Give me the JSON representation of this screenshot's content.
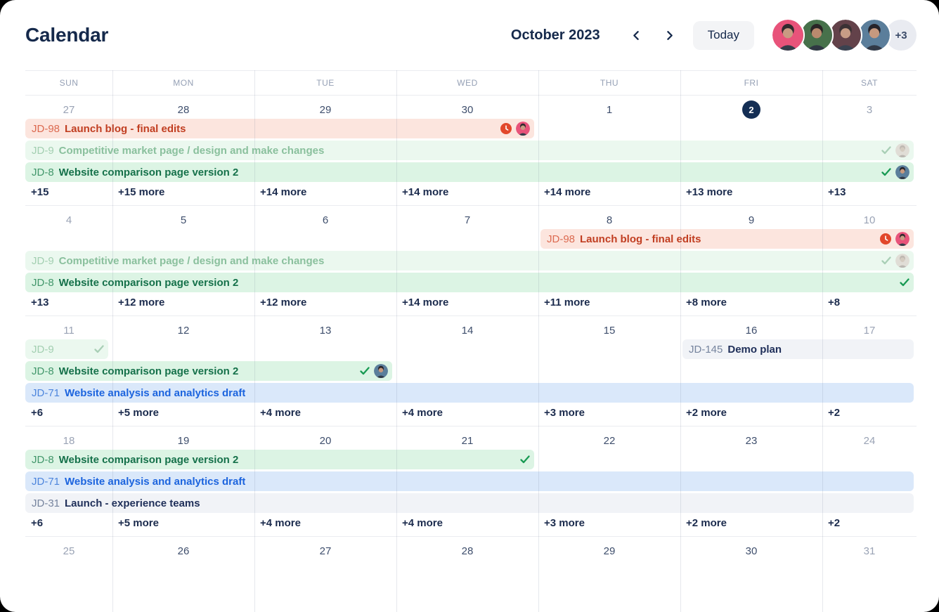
{
  "header": {
    "title": "Calendar",
    "month_label": "October 2023",
    "today_label": "Today",
    "avatars": [
      "avatar-icon-pink",
      "avatar-icon-green",
      "avatar-icon-maroon",
      "avatar-icon-slate"
    ],
    "overflow_badge": "+3"
  },
  "day_headers": [
    "SUN",
    "MON",
    "TUE",
    "WED",
    "THU",
    "FRI",
    "SAT"
  ],
  "colors": {
    "ink": "#15294B",
    "grid_line": "#EBECF0",
    "today_bg": "#142E54",
    "more_text": "#1B2B4D",
    "weekday_num": "#3E4E6C",
    "weekend_num": "#9AA3B5"
  },
  "palette": {
    "red": {
      "bg": "#FCE5DE",
      "key": "#DC6A50",
      "title": "#C13E21"
    },
    "greenFaded": {
      "bg": "#EBF8EF",
      "key": "#A3CFB1",
      "title": "#8AC09D"
    },
    "green": {
      "bg": "#DCF4E4",
      "key": "#42976B",
      "title": "#15714A"
    },
    "blue": {
      "bg": "#DAE8FA",
      "key": "#4E86DD",
      "title": "#1C64DE"
    },
    "gray": {
      "bg": "#F1F3F7",
      "key": "#76849E",
      "title": "#20305A"
    }
  },
  "avatar_defs": {
    "avatar-icon-pink": {
      "bg": "#E8537A",
      "hair": "#312A2E",
      "skin": "#C99B82",
      "shirt": "#343C49",
      "faded": false
    },
    "avatar-icon-green": {
      "bg": "#47714B",
      "hair": "#2A2526",
      "skin": "#B98A6E",
      "shirt": "#2F3742",
      "faded": false
    },
    "avatar-icon-maroon": {
      "bg": "#63424A",
      "hair": "#3A3134",
      "skin": "#C79C86",
      "shirt": "#3A4250",
      "faded": false
    },
    "avatar-icon-slate": {
      "bg": "#5B7E9B",
      "hair": "#26242B",
      "skin": "#C6997F",
      "shirt": "#313947",
      "faded": false
    },
    "avatar-icon-faded": {
      "bg": "#DFD9D2",
      "hair": "#B8AEA7",
      "skin": "#CFC3B8",
      "shirt": "#B2ACA6",
      "faded": true
    }
  },
  "check_colors": {
    "check-icon": "#189A53",
    "check-icon-faded": "#A9CFB6"
  },
  "clock_color": "#E2472B",
  "weeks": [
    {
      "days": [
        {
          "label": "27",
          "muted": true
        },
        {
          "label": "28"
        },
        {
          "label": "29"
        },
        {
          "label": "30"
        },
        {
          "label": "1"
        },
        {
          "label": "2",
          "today": true
        },
        {
          "label": "3",
          "muted": true
        }
      ],
      "events": [
        {
          "key": "JD-98",
          "title": "Launch blog - final edits",
          "style": "red",
          "col_start": 0,
          "col_end": 3,
          "slot": 0,
          "icons": [
            "clock-icon",
            "avatar-icon-pink"
          ]
        },
        {
          "key": "JD-9",
          "title": "Competitive market page / design and make changes",
          "style": "greenFaded",
          "col_start": 0,
          "col_end": 6,
          "slot": 1,
          "icons": [
            "check-icon-faded",
            "avatar-icon-faded"
          ]
        },
        {
          "key": "JD-8",
          "title": "Website comparison page version 2",
          "style": "green",
          "col_start": 0,
          "col_end": 6,
          "slot": 2,
          "icons": [
            "check-icon",
            "avatar-icon-slate"
          ]
        }
      ],
      "more": [
        "+15",
        "+15 more",
        "+14 more",
        "+14 more",
        "+14 more",
        "+13 more",
        "+13"
      ]
    },
    {
      "days": [
        {
          "label": "4",
          "muted": true
        },
        {
          "label": "5"
        },
        {
          "label": "6"
        },
        {
          "label": "7"
        },
        {
          "label": "8"
        },
        {
          "label": "9"
        },
        {
          "label": "10",
          "muted": true
        }
      ],
      "events": [
        {
          "key": "JD-98",
          "title": "Launch blog - final edits",
          "style": "red",
          "col_start": 4,
          "col_end": 6,
          "slot": 0,
          "icons": [
            "clock-icon",
            "avatar-icon-pink"
          ]
        },
        {
          "key": "JD-9",
          "title": "Competitive market page / design and make changes",
          "style": "greenFaded",
          "col_start": 0,
          "col_end": 6,
          "slot": 1,
          "icons": [
            "check-icon-faded",
            "avatar-icon-faded"
          ]
        },
        {
          "key": "JD-8",
          "title": "Website comparison page version 2",
          "style": "green",
          "col_start": 0,
          "col_end": 6,
          "slot": 2,
          "icons": [
            "check-icon"
          ]
        }
      ],
      "more": [
        "+13",
        "+12 more",
        "+12 more",
        "+14 more",
        "+11 more",
        "+8 more",
        "+8"
      ]
    },
    {
      "days": [
        {
          "label": "11",
          "muted": true
        },
        {
          "label": "12"
        },
        {
          "label": "13"
        },
        {
          "label": "14"
        },
        {
          "label": "15"
        },
        {
          "label": "16"
        },
        {
          "label": "17",
          "muted": true
        }
      ],
      "events": [
        {
          "key": "JD-9",
          "title": "",
          "style": "greenFaded",
          "col_start": 0,
          "col_end": 0,
          "slot": 0,
          "icons": [
            "check-icon-faded"
          ]
        },
        {
          "key": "JD-145",
          "title": "Demo plan",
          "style": "gray",
          "col_start": 5,
          "col_end": 6,
          "slot": 0,
          "icons": []
        },
        {
          "key": "JD-8",
          "title": "Website comparison page version 2",
          "style": "green",
          "col_start": 0,
          "col_end": 2,
          "slot": 1,
          "icons": [
            "check-icon",
            "avatar-icon-slate"
          ]
        },
        {
          "key": "JD-71",
          "title": "Website analysis and analytics draft",
          "style": "blue",
          "col_start": 0,
          "col_end": 6,
          "slot": 2,
          "icons": []
        }
      ],
      "more": [
        "+6",
        "+5 more",
        "+4 more",
        "+4 more",
        "+3 more",
        "+2 more",
        "+2"
      ]
    },
    {
      "days": [
        {
          "label": "18",
          "muted": true
        },
        {
          "label": "19"
        },
        {
          "label": "20"
        },
        {
          "label": "21"
        },
        {
          "label": "22"
        },
        {
          "label": "23"
        },
        {
          "label": "24",
          "muted": true
        }
      ],
      "events": [
        {
          "key": "JD-8",
          "title": "Website comparison page version 2",
          "style": "green",
          "col_start": 0,
          "col_end": 3,
          "slot": 0,
          "icons": [
            "check-icon"
          ]
        },
        {
          "key": "JD-71",
          "title": "Website analysis and analytics draft",
          "style": "blue",
          "col_start": 0,
          "col_end": 6,
          "slot": 1,
          "icons": []
        },
        {
          "key": "JD-31",
          "title": "Launch - experience teams",
          "style": "gray",
          "col_start": 0,
          "col_end": 6,
          "slot": 2,
          "icons": []
        }
      ],
      "more": [
        "+6",
        "+5 more",
        "+4 more",
        "+4 more",
        "+3 more",
        "+2 more",
        "+2"
      ]
    },
    {
      "days": [
        {
          "label": "25",
          "muted": true
        },
        {
          "label": "26"
        },
        {
          "label": "27"
        },
        {
          "label": "28"
        },
        {
          "label": "29"
        },
        {
          "label": "30"
        },
        {
          "label": "31",
          "muted": true
        }
      ],
      "events": [],
      "more": []
    }
  ]
}
